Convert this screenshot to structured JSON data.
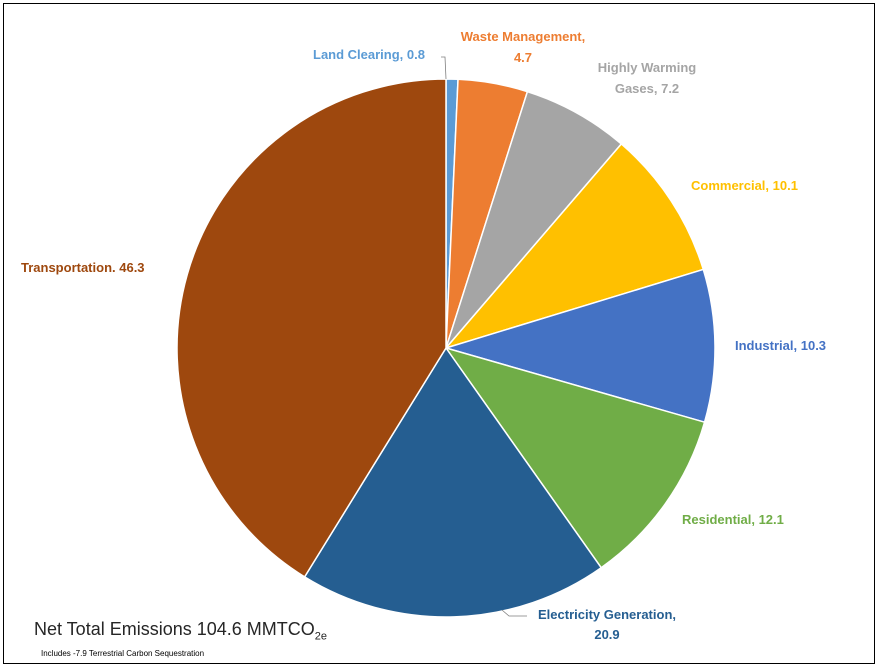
{
  "chart_data": {
    "type": "pie",
    "unit": "MMTCO2e",
    "slices": [
      {
        "label": "Land Clearing",
        "value": 0.8,
        "color": "#5B9BD5",
        "display": [
          "Land Clearing, 0.8"
        ]
      },
      {
        "label": "Waste Management",
        "value": 4.7,
        "color": "#ED7D31",
        "display": [
          "Waste Management,",
          "4.7"
        ]
      },
      {
        "label": "Highly Warming Gases",
        "value": 7.2,
        "color": "#A5A5A5",
        "display": [
          "Highly Warming",
          "Gases, 7.2"
        ]
      },
      {
        "label": "Commercial",
        "value": 10.1,
        "color": "#FFC000",
        "display": [
          "Commercial, 10.1"
        ]
      },
      {
        "label": "Industrial",
        "value": 10.3,
        "color": "#4472C4",
        "display": [
          "Industrial, 10.3"
        ]
      },
      {
        "label": "Residential",
        "value": 12.1,
        "color": "#70AD47",
        "display": [
          "Residential, 12.1"
        ]
      },
      {
        "label": "Electricity Generation",
        "value": 20.9,
        "color": "#255E91",
        "display": [
          "Electricity Generation,",
          "20.9"
        ]
      },
      {
        "label": "Transportation",
        "value": 46.3,
        "color": "#9E480E",
        "display": [
          "Transportation.  46.3"
        ]
      }
    ],
    "label_colors": {
      "Land Clearing": "#5B9BD5",
      "Waste Management": "#ED7D31",
      "Highly Warming Gases": "#A5A5A5",
      "Commercial": "#FFC000",
      "Industrial": "#4472C4",
      "Residential": "#70AD47",
      "Electricity Generation": "#255E91",
      "Transportation": "#9E480E"
    },
    "annotation": {
      "net_total_prefix": "Net Total Emissions 104.6 MMTCO",
      "net_total_subscript": "2e",
      "note": "Includes -7.9 Terrestrial Carbon Sequestration"
    }
  }
}
